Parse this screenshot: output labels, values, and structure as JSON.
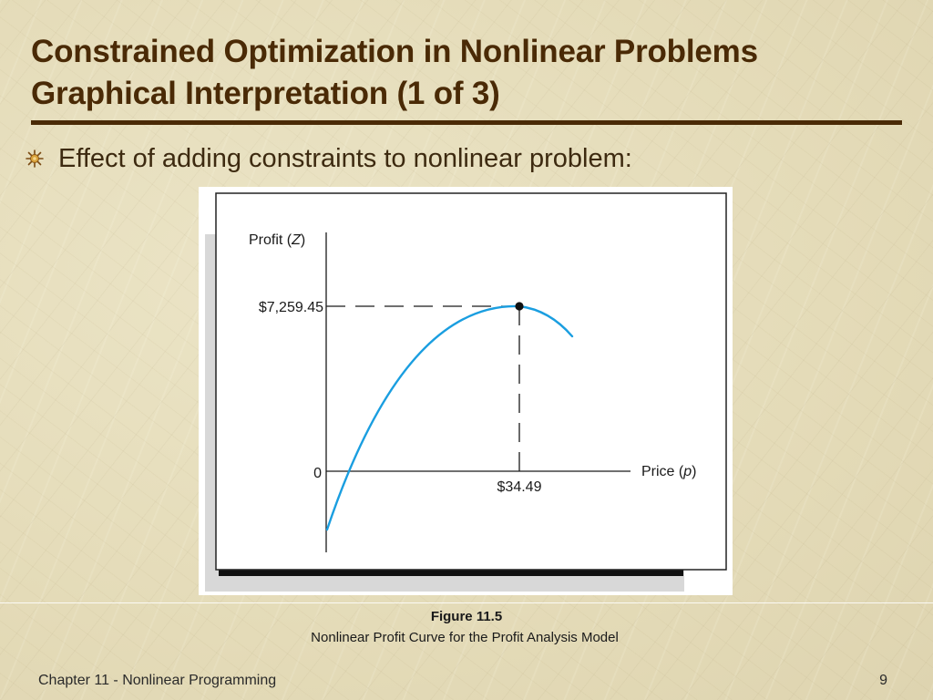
{
  "slide": {
    "title_line1": "Constrained Optimization in Nonlinear Problems",
    "title_line2": "Graphical Interpretation (1 of 3)",
    "bullet": "Effect of adding constraints to nonlinear problem:",
    "bullet_icon": "starburst-bullet-icon",
    "colors": {
      "title": "#4a2a06",
      "curve": "#1a9ee0",
      "background": "#e8e0c0"
    }
  },
  "chart_data": {
    "type": "line",
    "title": "",
    "xlabel_prefix": "Price (",
    "xlabel_var": "p",
    "xlabel_suffix": ")",
    "ylabel_prefix": "Profit (",
    "ylabel_var": "Z",
    "ylabel_suffix": ")",
    "y_tick_labels": [
      "$7,259.45",
      "0"
    ],
    "x_tick_labels": [
      "$34.49"
    ],
    "optimum": {
      "x": 34.49,
      "y": 7259.45
    },
    "grid": false,
    "legend": "none"
  },
  "caption": {
    "title": "Figure 11.5",
    "subtitle": "Nonlinear Profit Curve for the Profit Analysis Model"
  },
  "footer": {
    "chapter": "Chapter 11 - Nonlinear Programming",
    "page": "9"
  }
}
